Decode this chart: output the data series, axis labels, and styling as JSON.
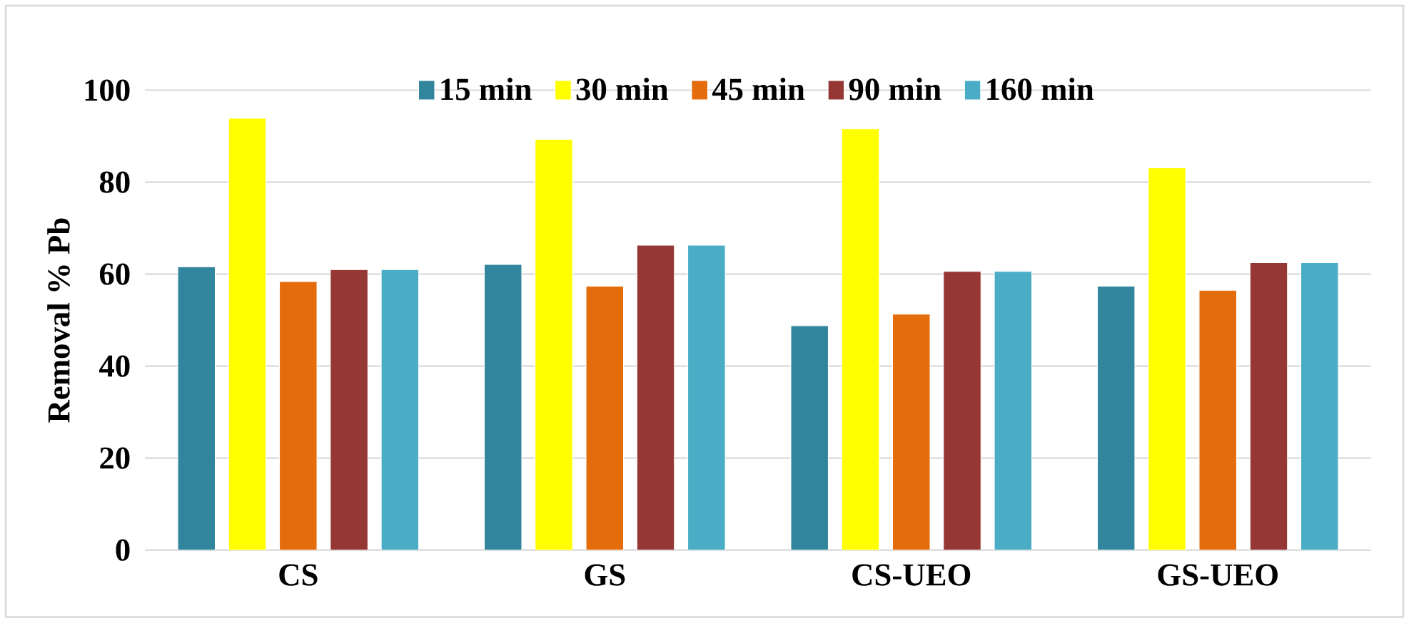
{
  "chart_data": {
    "type": "bar",
    "ylabel": "Removal % Pb",
    "categories": [
      "CS",
      "GS",
      "CS-UEO",
      "GS-UEO"
    ],
    "series": [
      {
        "name": "15 min",
        "color": "#31859c",
        "values": [
          61.6,
          62.1,
          48.8,
          57.4
        ]
      },
      {
        "name": "30 min",
        "color": "#ffff00",
        "values": [
          93.9,
          89.3,
          91.6,
          83.1
        ]
      },
      {
        "name": "45 min",
        "color": "#e46c0a",
        "values": [
          58.4,
          57.4,
          51.3,
          56.5
        ]
      },
      {
        "name": "90 min",
        "color": "#953735",
        "values": [
          61.0,
          66.3,
          60.6,
          62.5
        ]
      },
      {
        "name": "160 min",
        "color": "#4bacc6",
        "values": [
          61.0,
          66.3,
          60.6,
          62.5
        ]
      }
    ],
    "ylim": [
      0,
      100
    ],
    "yticks": [
      0,
      20,
      40,
      60,
      80,
      100
    ],
    "grid": "y",
    "legend": "top"
  }
}
